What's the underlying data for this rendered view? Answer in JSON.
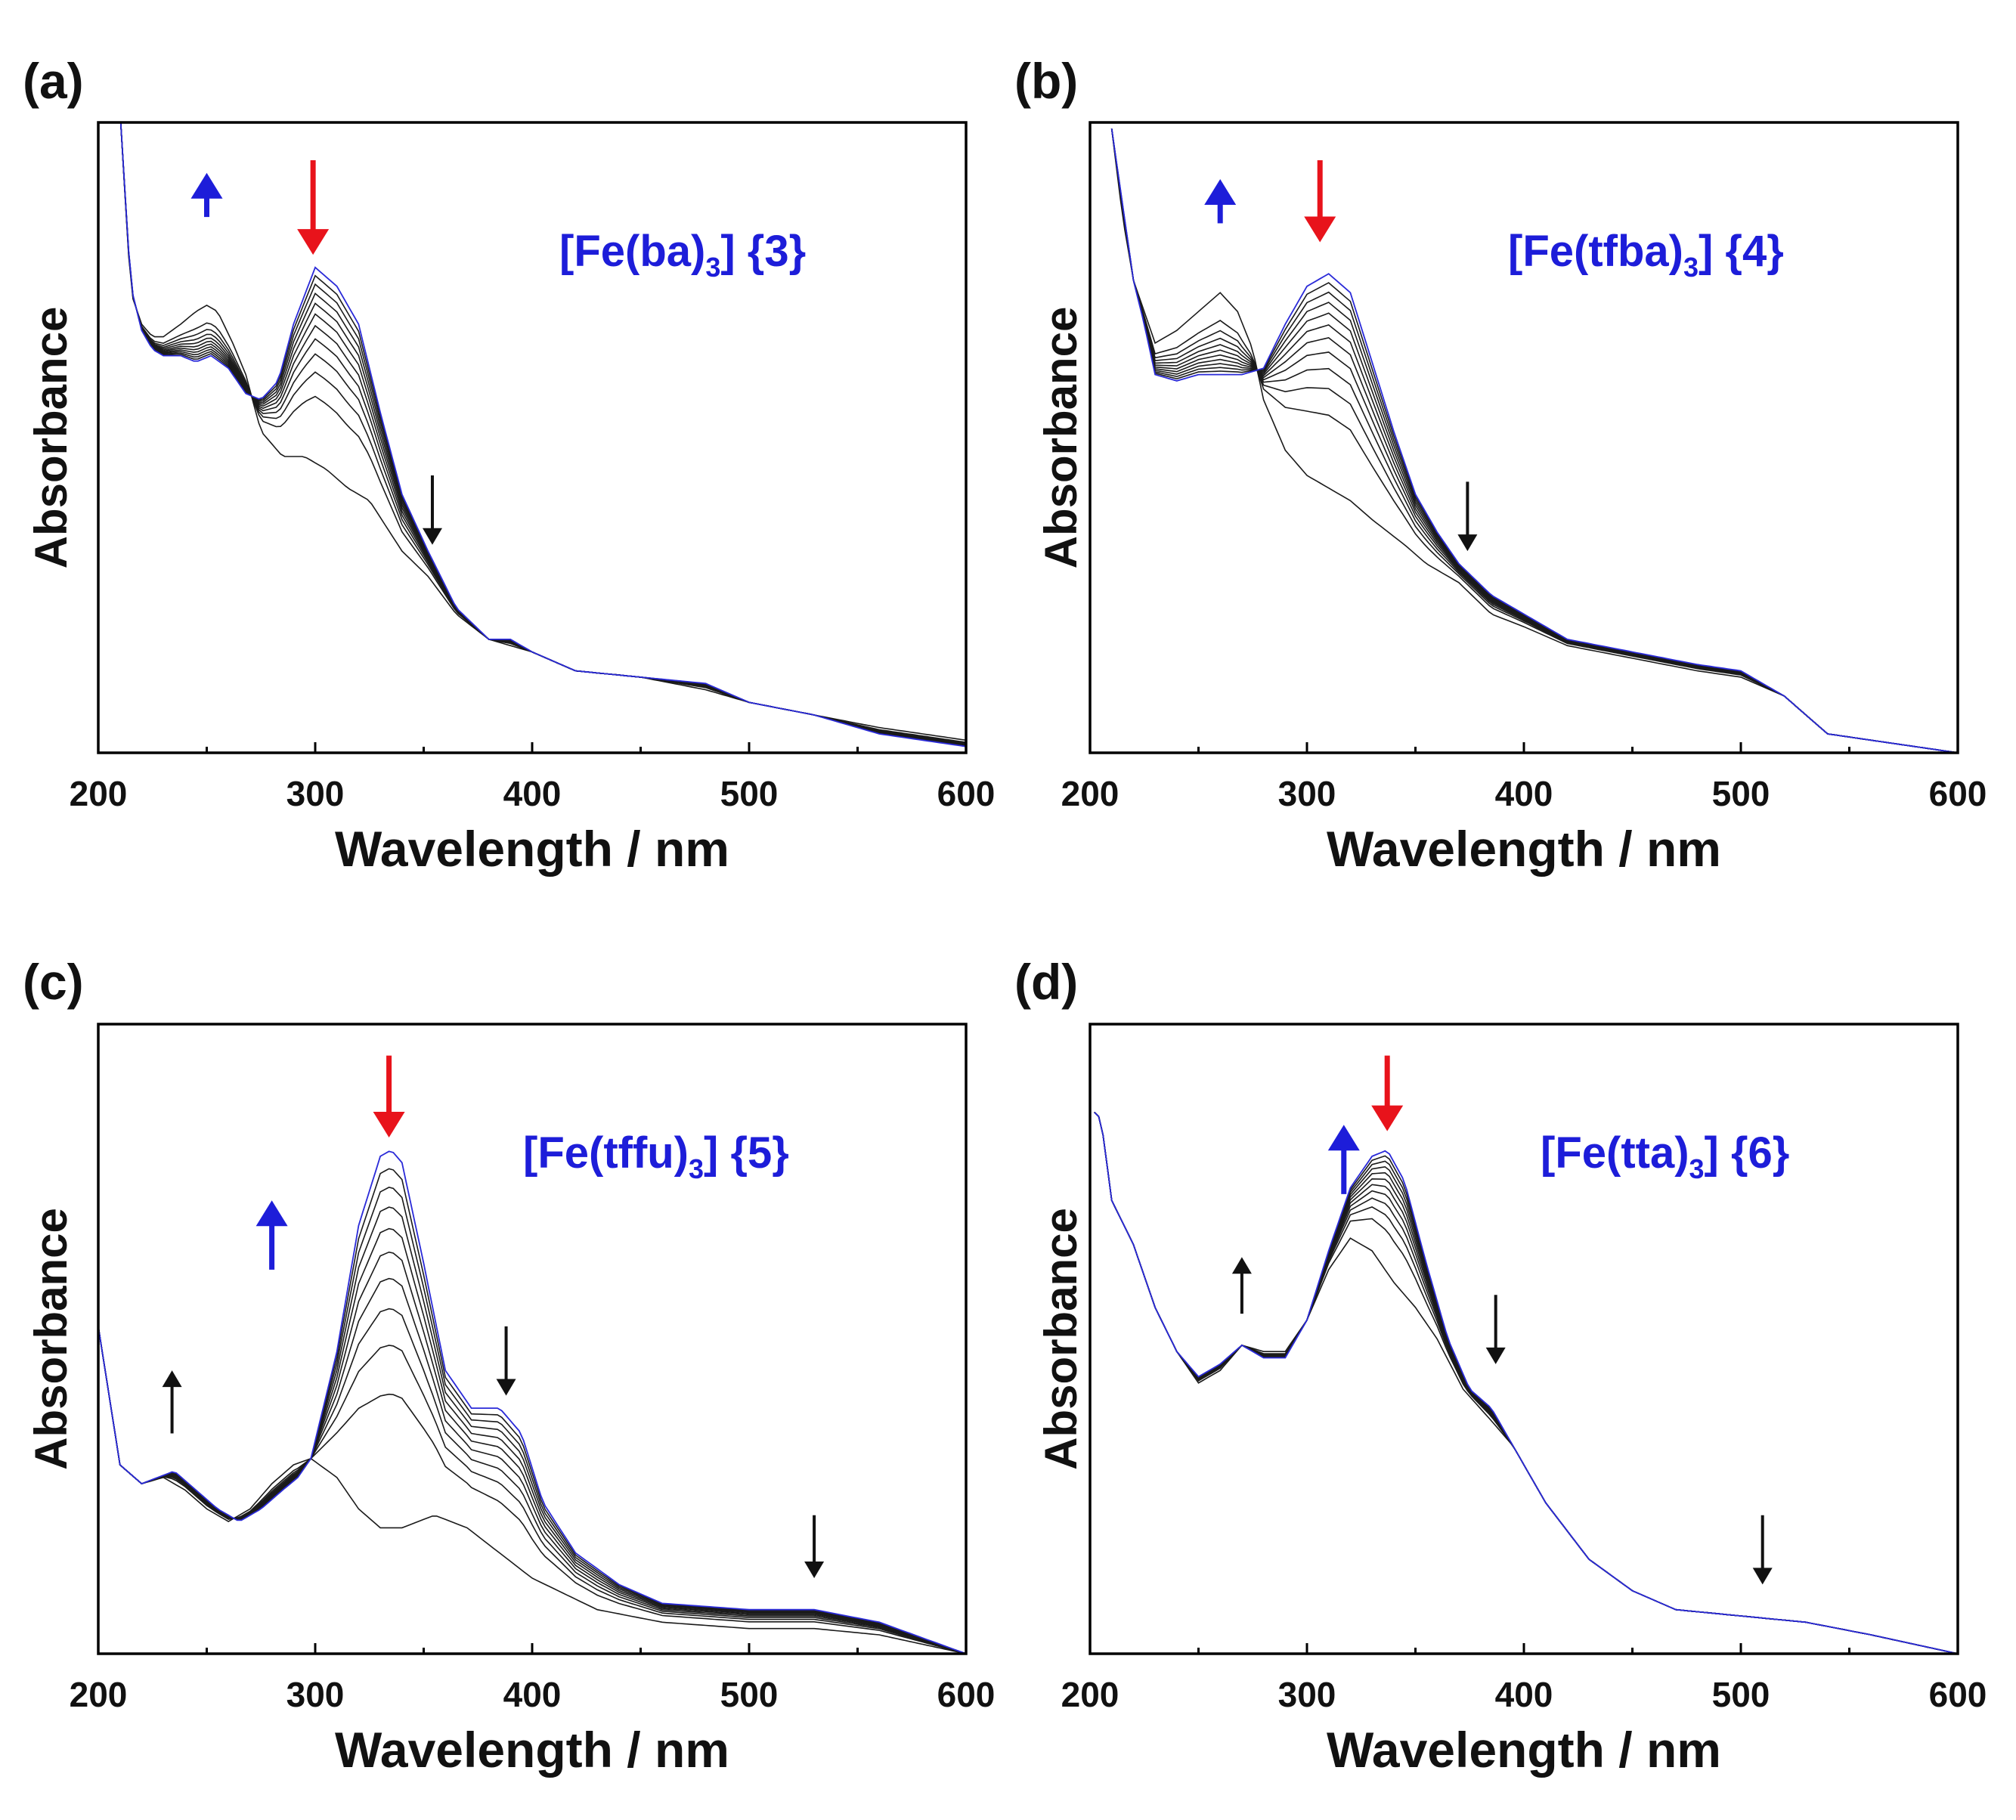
{
  "colors": {
    "blue": "#1d1dd9",
    "red": "#e8131b",
    "black": "#111111",
    "final_trace": "#2a2ad8"
  },
  "chart_data": [
    {
      "panel_label": "(a)",
      "compound": "[Fe(ba)",
      "compound_sub": "3",
      "compound_tail": "] {3}",
      "type": "line",
      "xlabel": "Wavelength / nm",
      "ylabel": "Absorbance",
      "xlim": [
        200,
        600
      ],
      "xticks": [
        "200",
        "300",
        "400",
        "500",
        "600"
      ],
      "ylim": [
        0,
        1.0
      ],
      "series_count": 12,
      "start": [
        [
          210,
          1.02
        ],
        [
          215,
          0.73
        ],
        [
          220,
          0.68
        ],
        [
          225,
          0.66
        ],
        [
          230,
          0.66
        ],
        [
          238,
          0.68
        ],
        [
          245,
          0.7
        ],
        [
          250,
          0.71
        ],
        [
          255,
          0.7
        ],
        [
          262,
          0.65
        ],
        [
          268,
          0.6
        ],
        [
          275,
          0.51
        ],
        [
          285,
          0.47
        ],
        [
          295,
          0.47
        ],
        [
          305,
          0.45
        ],
        [
          315,
          0.42
        ],
        [
          325,
          0.4
        ],
        [
          340,
          0.32
        ],
        [
          352,
          0.28
        ],
        [
          365,
          0.22
        ],
        [
          380,
          0.18
        ],
        [
          400,
          0.16
        ],
        [
          420,
          0.13
        ],
        [
          450,
          0.12
        ],
        [
          480,
          0.1
        ],
        [
          500,
          0.08
        ],
        [
          530,
          0.06
        ],
        [
          560,
          0.04
        ],
        [
          600,
          0.02
        ]
      ],
      "end": [
        [
          210,
          1.02
        ],
        [
          215,
          0.74
        ],
        [
          220,
          0.67
        ],
        [
          225,
          0.64
        ],
        [
          230,
          0.63
        ],
        [
          238,
          0.63
        ],
        [
          245,
          0.62
        ],
        [
          252,
          0.63
        ],
        [
          260,
          0.61
        ],
        [
          268,
          0.57
        ],
        [
          275,
          0.56
        ],
        [
          283,
          0.59
        ],
        [
          290,
          0.68
        ],
        [
          300,
          0.77
        ],
        [
          310,
          0.74
        ],
        [
          320,
          0.68
        ],
        [
          330,
          0.54
        ],
        [
          340,
          0.41
        ],
        [
          352,
          0.32
        ],
        [
          365,
          0.23
        ],
        [
          380,
          0.18
        ],
        [
          390,
          0.18
        ],
        [
          400,
          0.16
        ],
        [
          420,
          0.13
        ],
        [
          450,
          0.12
        ],
        [
          480,
          0.11
        ],
        [
          500,
          0.08
        ],
        [
          530,
          0.06
        ],
        [
          560,
          0.03
        ],
        [
          600,
          0.01
        ]
      ],
      "arrows": [
        {
          "x": 250,
          "dir": "up",
          "color": "blue",
          "y1": 0.85,
          "y2": 0.92,
          "size": "big"
        },
        {
          "x": 299,
          "dir": "down",
          "color": "red",
          "y1": 0.94,
          "y2": 0.79,
          "size": "big"
        },
        {
          "x": 354,
          "dir": "down",
          "color": "black",
          "y1": 0.44,
          "y2": 0.33,
          "size": "small"
        }
      ]
    },
    {
      "panel_label": "(b)",
      "compound": "[Fe(tfba)",
      "compound_sub": "3",
      "compound_tail": "] {4}",
      "type": "line",
      "xlabel": "Wavelength / nm",
      "ylabel": "Absorbance",
      "xlim": [
        200,
        600
      ],
      "xticks": [
        "200",
        "300",
        "400",
        "500",
        "600"
      ],
      "ylim": [
        0,
        1.0
      ],
      "series_count": 12,
      "start": [
        [
          210,
          0.99
        ],
        [
          215,
          0.85
        ],
        [
          220,
          0.75
        ],
        [
          225,
          0.7
        ],
        [
          230,
          0.65
        ],
        [
          240,
          0.67
        ],
        [
          250,
          0.7
        ],
        [
          260,
          0.73
        ],
        [
          268,
          0.7
        ],
        [
          275,
          0.64
        ],
        [
          280,
          0.56
        ],
        [
          290,
          0.48
        ],
        [
          300,
          0.44
        ],
        [
          310,
          0.42
        ],
        [
          320,
          0.4
        ],
        [
          330,
          0.37
        ],
        [
          345,
          0.33
        ],
        [
          355,
          0.3
        ],
        [
          370,
          0.27
        ],
        [
          385,
          0.22
        ],
        [
          400,
          0.2
        ],
        [
          420,
          0.17
        ],
        [
          450,
          0.15
        ],
        [
          480,
          0.13
        ],
        [
          500,
          0.12
        ],
        [
          520,
          0.09
        ],
        [
          540,
          0.03
        ],
        [
          600,
          0.0
        ]
      ],
      "end": [
        [
          210,
          0.99
        ],
        [
          215,
          0.87
        ],
        [
          220,
          0.75
        ],
        [
          225,
          0.68
        ],
        [
          230,
          0.6
        ],
        [
          240,
          0.59
        ],
        [
          250,
          0.6
        ],
        [
          260,
          0.6
        ],
        [
          270,
          0.6
        ],
        [
          280,
          0.61
        ],
        [
          290,
          0.68
        ],
        [
          300,
          0.74
        ],
        [
          310,
          0.76
        ],
        [
          320,
          0.73
        ],
        [
          330,
          0.62
        ],
        [
          340,
          0.51
        ],
        [
          350,
          0.41
        ],
        [
          360,
          0.35
        ],
        [
          370,
          0.3
        ],
        [
          385,
          0.25
        ],
        [
          400,
          0.22
        ],
        [
          420,
          0.18
        ],
        [
          450,
          0.16
        ],
        [
          480,
          0.14
        ],
        [
          500,
          0.13
        ],
        [
          520,
          0.09
        ],
        [
          540,
          0.03
        ],
        [
          600,
          0.0
        ]
      ],
      "arrows": [
        {
          "x": 260,
          "dir": "up",
          "color": "blue",
          "y1": 0.84,
          "y2": 0.91,
          "size": "big"
        },
        {
          "x": 306,
          "dir": "down",
          "color": "red",
          "y1": 0.94,
          "y2": 0.81,
          "size": "big"
        },
        {
          "x": 374,
          "dir": "down",
          "color": "black",
          "y1": 0.43,
          "y2": 0.32,
          "size": "small"
        }
      ]
    },
    {
      "panel_label": "(c)",
      "compound": "[Fe(tffu)",
      "compound_sub": "3",
      "compound_tail": "] {5}",
      "type": "line",
      "xlabel": "Wavelength / nm",
      "ylabel": "Absorbance",
      "xlim": [
        200,
        600
      ],
      "xticks": [
        "200",
        "300",
        "400",
        "500",
        "600"
      ],
      "ylim": [
        0,
        1.0
      ],
      "series_count": 11,
      "start": [
        [
          200,
          0.52
        ],
        [
          210,
          0.3
        ],
        [
          220,
          0.27
        ],
        [
          230,
          0.28
        ],
        [
          240,
          0.26
        ],
        [
          250,
          0.23
        ],
        [
          260,
          0.21
        ],
        [
          270,
          0.23
        ],
        [
          280,
          0.27
        ],
        [
          290,
          0.3
        ],
        [
          298,
          0.31
        ],
        [
          310,
          0.28
        ],
        [
          320,
          0.23
        ],
        [
          330,
          0.2
        ],
        [
          340,
          0.2
        ],
        [
          355,
          0.22
        ],
        [
          370,
          0.2
        ],
        [
          385,
          0.16
        ],
        [
          400,
          0.12
        ],
        [
          430,
          0.07
        ],
        [
          460,
          0.05
        ],
        [
          500,
          0.04
        ],
        [
          530,
          0.04
        ],
        [
          560,
          0.03
        ],
        [
          600,
          0.0
        ]
      ],
      "end": [
        [
          200,
          0.52
        ],
        [
          210,
          0.3
        ],
        [
          220,
          0.27
        ],
        [
          235,
          0.29
        ],
        [
          245,
          0.26
        ],
        [
          255,
          0.23
        ],
        [
          265,
          0.21
        ],
        [
          275,
          0.23
        ],
        [
          285,
          0.26
        ],
        [
          292,
          0.28
        ],
        [
          298,
          0.31
        ],
        [
          310,
          0.48
        ],
        [
          320,
          0.68
        ],
        [
          330,
          0.79
        ],
        [
          335,
          0.8
        ],
        [
          340,
          0.78
        ],
        [
          350,
          0.62
        ],
        [
          360,
          0.45
        ],
        [
          372,
          0.39
        ],
        [
          385,
          0.39
        ],
        [
          395,
          0.35
        ],
        [
          405,
          0.24
        ],
        [
          420,
          0.16
        ],
        [
          440,
          0.11
        ],
        [
          460,
          0.08
        ],
        [
          500,
          0.07
        ],
        [
          530,
          0.07
        ],
        [
          560,
          0.05
        ],
        [
          600,
          0.0
        ]
      ],
      "arrows": [
        {
          "x": 234,
          "dir": "up",
          "color": "black",
          "y1": 0.35,
          "y2": 0.45,
          "size": "small"
        },
        {
          "x": 280,
          "dir": "up",
          "color": "blue",
          "y1": 0.61,
          "y2": 0.72,
          "size": "big"
        },
        {
          "x": 334,
          "dir": "down",
          "color": "red",
          "y1": 0.95,
          "y2": 0.82,
          "size": "big"
        },
        {
          "x": 388,
          "dir": "down",
          "color": "black",
          "y1": 0.52,
          "y2": 0.41,
          "size": "small"
        },
        {
          "x": 530,
          "dir": "down",
          "color": "black",
          "y1": 0.22,
          "y2": 0.12,
          "size": "small"
        }
      ]
    },
    {
      "panel_label": "(d)",
      "compound": "[Fe(tta)",
      "compound_sub": "3",
      "compound_tail": "] {6}",
      "type": "line",
      "xlabel": "Wavelength / nm",
      "ylabel": "Absorbance",
      "xlim": [
        200,
        600
      ],
      "xticks": [
        "200",
        "300",
        "400",
        "500",
        "600"
      ],
      "ylim": [
        0,
        1.0
      ],
      "series_count": 12,
      "start": [
        [
          202,
          0.86
        ],
        [
          205,
          0.85
        ],
        [
          210,
          0.72
        ],
        [
          220,
          0.65
        ],
        [
          230,
          0.55
        ],
        [
          240,
          0.48
        ],
        [
          250,
          0.43
        ],
        [
          260,
          0.45
        ],
        [
          270,
          0.49
        ],
        [
          280,
          0.48
        ],
        [
          290,
          0.48
        ],
        [
          300,
          0.53
        ],
        [
          310,
          0.61
        ],
        [
          320,
          0.66
        ],
        [
          330,
          0.64
        ],
        [
          340,
          0.59
        ],
        [
          350,
          0.55
        ],
        [
          360,
          0.5
        ],
        [
          372,
          0.42
        ],
        [
          385,
          0.37
        ],
        [
          395,
          0.33
        ],
        [
          410,
          0.24
        ],
        [
          430,
          0.15
        ],
        [
          450,
          0.1
        ],
        [
          470,
          0.07
        ],
        [
          500,
          0.06
        ],
        [
          530,
          0.05
        ],
        [
          560,
          0.03
        ],
        [
          600,
          0.0
        ]
      ],
      "end": [
        [
          202,
          0.86
        ],
        [
          205,
          0.85
        ],
        [
          210,
          0.72
        ],
        [
          220,
          0.65
        ],
        [
          230,
          0.55
        ],
        [
          240,
          0.48
        ],
        [
          250,
          0.44
        ],
        [
          260,
          0.46
        ],
        [
          270,
          0.49
        ],
        [
          280,
          0.47
        ],
        [
          290,
          0.47
        ],
        [
          300,
          0.53
        ],
        [
          310,
          0.64
        ],
        [
          320,
          0.74
        ],
        [
          330,
          0.79
        ],
        [
          337,
          0.8
        ],
        [
          345,
          0.75
        ],
        [
          355,
          0.62
        ],
        [
          365,
          0.5
        ],
        [
          375,
          0.42
        ],
        [
          385,
          0.39
        ],
        [
          395,
          0.33
        ],
        [
          410,
          0.24
        ],
        [
          430,
          0.15
        ],
        [
          450,
          0.1
        ],
        [
          470,
          0.07
        ],
        [
          500,
          0.06
        ],
        [
          530,
          0.05
        ],
        [
          560,
          0.03
        ],
        [
          600,
          0.0
        ]
      ],
      "arrows": [
        {
          "x": 270,
          "dir": "up",
          "color": "black",
          "y1": 0.54,
          "y2": 0.63,
          "size": "small"
        },
        {
          "x": 317,
          "dir": "up",
          "color": "blue",
          "y1": 0.73,
          "y2": 0.84,
          "size": "big"
        },
        {
          "x": 337,
          "dir": "down",
          "color": "red",
          "y1": 0.95,
          "y2": 0.83,
          "size": "big"
        },
        {
          "x": 387,
          "dir": "down",
          "color": "black",
          "y1": 0.57,
          "y2": 0.46,
          "size": "small"
        },
        {
          "x": 510,
          "dir": "down",
          "color": "black",
          "y1": 0.22,
          "y2": 0.11,
          "size": "small"
        }
      ]
    }
  ]
}
